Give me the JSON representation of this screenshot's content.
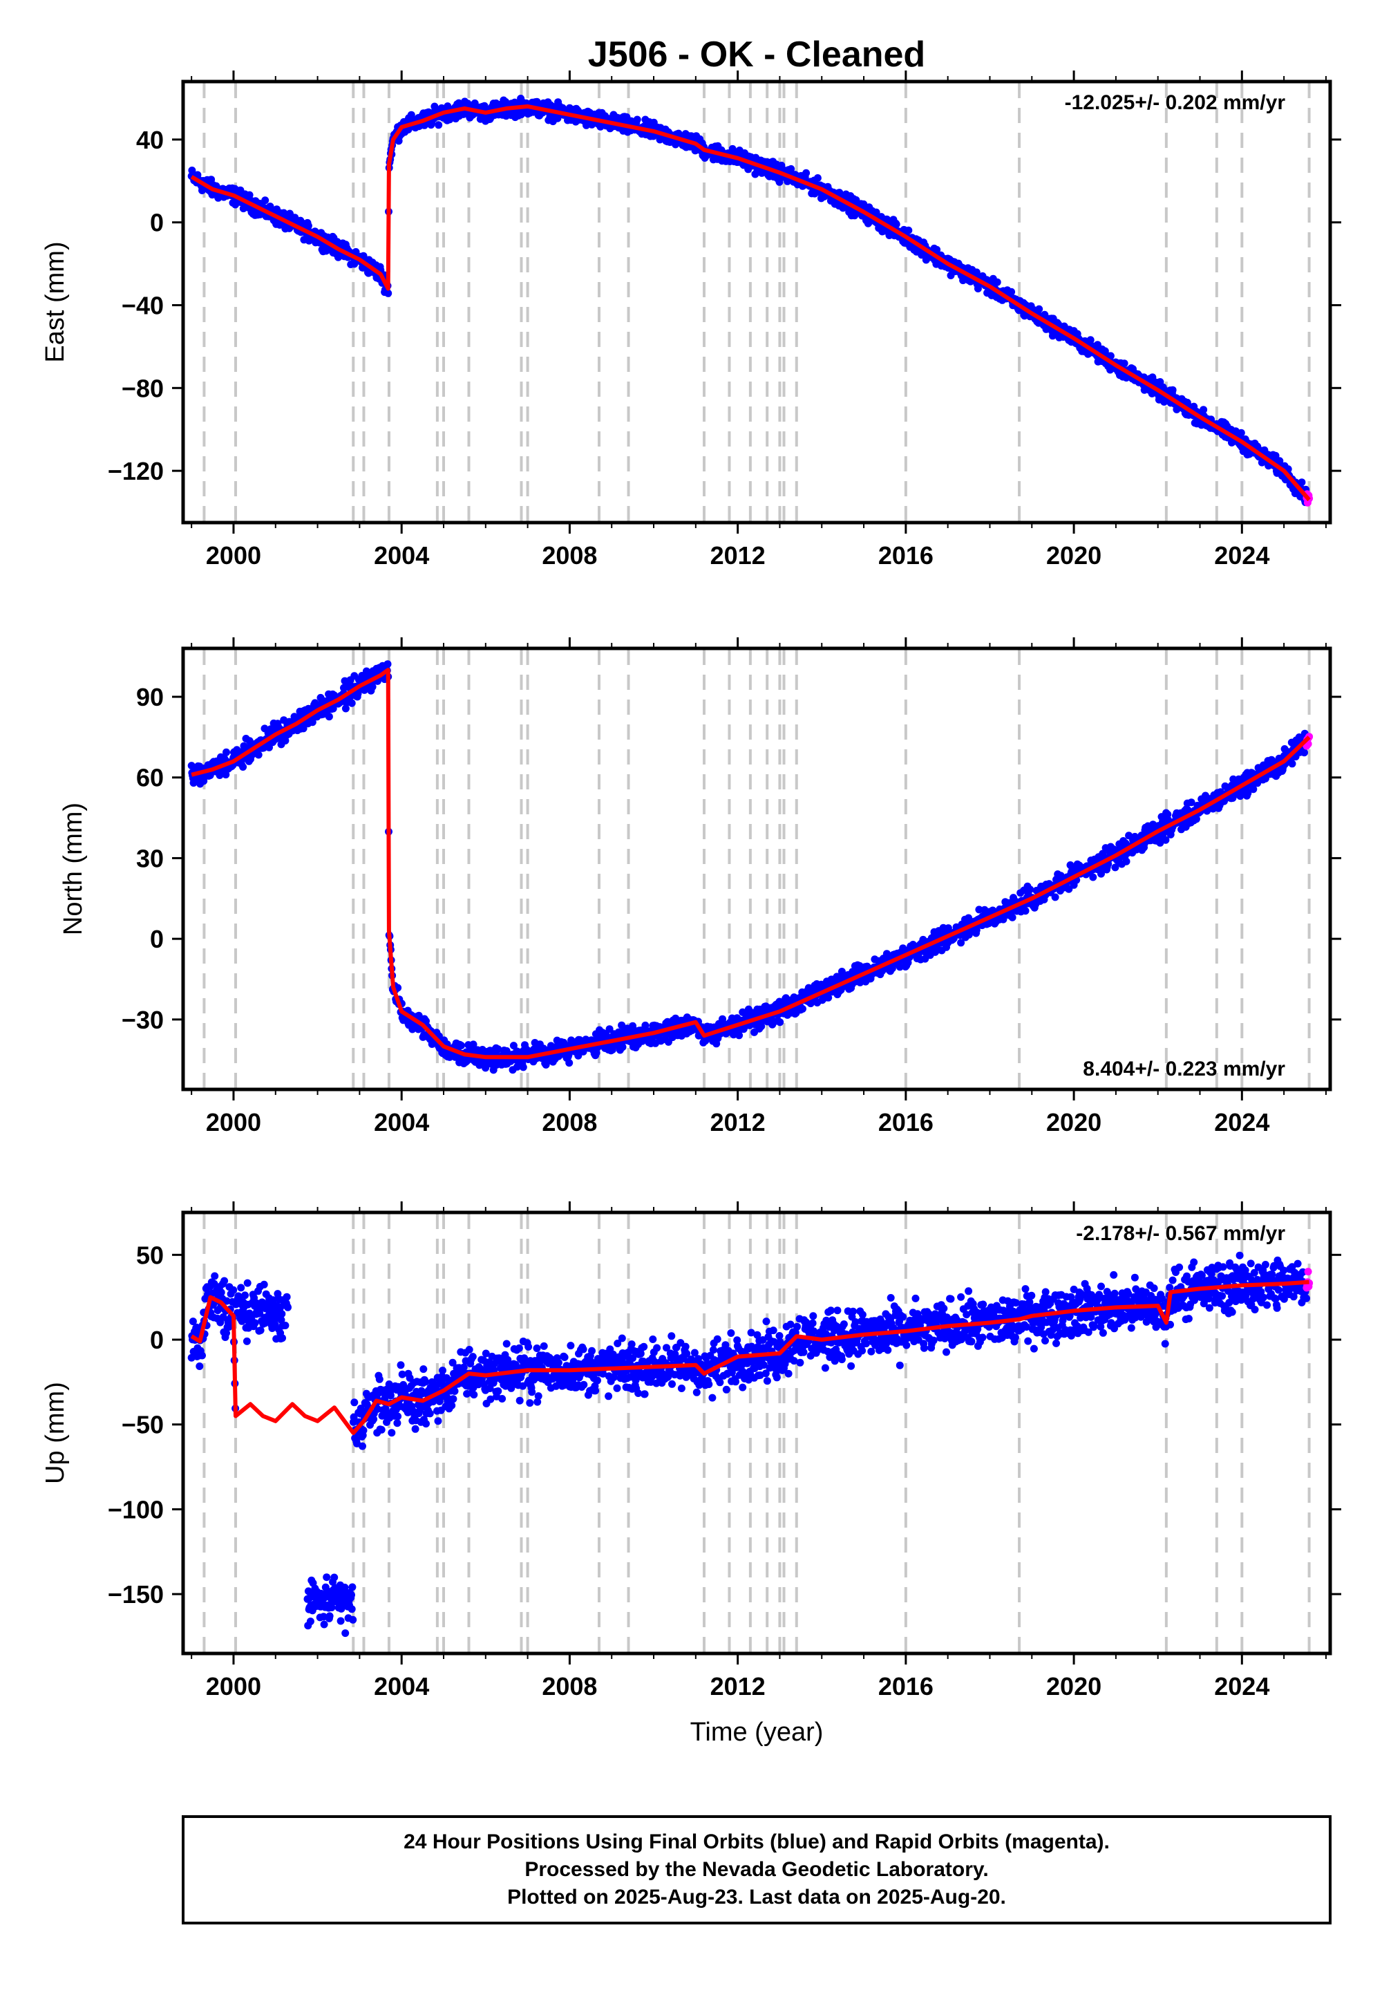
{
  "chart_data": [
    {
      "type": "scatter",
      "title": "J506  - OK - Cleaned",
      "ylabel": "East (mm)",
      "xlabel": "",
      "rate_label": "-12.025+/- 0.202 mm/yr",
      "rate_position": "top-right",
      "xlim": [
        1998.8,
        2026.1
      ],
      "ylim": [
        -145,
        68
      ],
      "xticks": [
        2000,
        2004,
        2008,
        2012,
        2016,
        2020,
        2024
      ],
      "yticks": [
        40,
        0,
        -40,
        -80,
        -120
      ],
      "ytick_labels": [
        "40",
        "0",
        "−40",
        "−80",
        "−120"
      ],
      "event_lines": [
        1999.3,
        2000.05,
        2002.85,
        2003.1,
        2003.7,
        2004.85,
        2005.0,
        2005.6,
        2006.85,
        2007.0,
        2008.7,
        2009.4,
        2011.2,
        2011.8,
        2012.3,
        2012.7,
        2013.0,
        2013.1,
        2013.4,
        2016.0,
        2018.7,
        2022.2,
        2023.4,
        2024.0,
        2025.6
      ],
      "model": [
        [
          1999.0,
          22
        ],
        [
          1999.5,
          16
        ],
        [
          2000.0,
          13
        ],
        [
          2000.5,
          8
        ],
        [
          2001.0,
          3
        ],
        [
          2001.5,
          -2
        ],
        [
          2002.0,
          -7
        ],
        [
          2002.5,
          -13
        ],
        [
          2003.0,
          -18
        ],
        [
          2003.5,
          -25
        ],
        [
          2003.68,
          -32
        ],
        [
          2003.7,
          28
        ],
        [
          2003.8,
          40
        ],
        [
          2004.0,
          46
        ],
        [
          2004.5,
          49
        ],
        [
          2005.0,
          53
        ],
        [
          2005.5,
          55
        ],
        [
          2006.0,
          53
        ],
        [
          2006.5,
          55
        ],
        [
          2007.0,
          56
        ],
        [
          2008.0,
          52
        ],
        [
          2009.0,
          48
        ],
        [
          2010.0,
          44
        ],
        [
          2011.0,
          38
        ],
        [
          2011.2,
          35
        ],
        [
          2012.0,
          31
        ],
        [
          2013.0,
          24
        ],
        [
          2014.0,
          16
        ],
        [
          2015.0,
          5
        ],
        [
          2016.0,
          -7
        ],
        [
          2017.0,
          -20
        ],
        [
          2018.0,
          -31
        ],
        [
          2019.0,
          -44
        ],
        [
          2020.0,
          -56
        ],
        [
          2021.0,
          -69
        ],
        [
          2022.0,
          -81
        ],
        [
          2023.0,
          -94
        ],
        [
          2024.0,
          -106
        ],
        [
          2025.0,
          -120
        ],
        [
          2025.6,
          -134
        ]
      ],
      "series": [
        {
          "name": "Final Orbits",
          "color": "#0000ff"
        },
        {
          "name": "Rapid Orbits",
          "color": "#ff00ff"
        },
        {
          "name": "Model",
          "color": "#ff0000"
        }
      ]
    },
    {
      "type": "scatter",
      "title": "",
      "ylabel": "North (mm)",
      "xlabel": "",
      "rate_label": "8.404+/- 0.223 mm/yr",
      "rate_position": "bottom-right",
      "xlim": [
        1998.8,
        2026.1
      ],
      "ylim": [
        -56,
        108
      ],
      "xticks": [
        2000,
        2004,
        2008,
        2012,
        2016,
        2020,
        2024
      ],
      "yticks": [
        90,
        60,
        30,
        0,
        -30
      ],
      "ytick_labels": [
        "90",
        "60",
        "30",
        "0",
        "−30"
      ],
      "event_lines": [
        1999.3,
        2000.05,
        2002.85,
        2003.1,
        2003.7,
        2004.85,
        2005.0,
        2005.6,
        2006.85,
        2007.0,
        2008.7,
        2009.4,
        2011.2,
        2011.8,
        2012.3,
        2012.7,
        2013.0,
        2013.1,
        2013.4,
        2016.0,
        2018.7,
        2022.2,
        2023.4,
        2024.0,
        2025.6
      ],
      "model": [
        [
          1999.0,
          61
        ],
        [
          1999.5,
          63
        ],
        [
          2000.0,
          66
        ],
        [
          2000.5,
          71
        ],
        [
          2001.0,
          76
        ],
        [
          2001.5,
          80
        ],
        [
          2002.0,
          85
        ],
        [
          2002.5,
          89
        ],
        [
          2003.0,
          94
        ],
        [
          2003.5,
          98
        ],
        [
          2003.68,
          100
        ],
        [
          2003.7,
          3
        ],
        [
          2003.8,
          -18
        ],
        [
          2004.0,
          -27
        ],
        [
          2004.5,
          -32
        ],
        [
          2005.0,
          -40
        ],
        [
          2005.5,
          -43
        ],
        [
          2006.0,
          -44
        ],
        [
          2006.5,
          -44
        ],
        [
          2007.0,
          -44
        ],
        [
          2008.0,
          -41
        ],
        [
          2009.0,
          -38
        ],
        [
          2010.0,
          -35
        ],
        [
          2011.0,
          -31
        ],
        [
          2011.2,
          -36
        ],
        [
          2012.0,
          -32
        ],
        [
          2013.0,
          -27
        ],
        [
          2014.0,
          -20
        ],
        [
          2015.0,
          -13
        ],
        [
          2016.0,
          -6
        ],
        [
          2017.0,
          1
        ],
        [
          2018.0,
          8
        ],
        [
          2019.0,
          15
        ],
        [
          2020.0,
          23
        ],
        [
          2021.0,
          31
        ],
        [
          2022.0,
          40
        ],
        [
          2023.0,
          48
        ],
        [
          2024.0,
          57
        ],
        [
          2025.0,
          66
        ],
        [
          2025.6,
          75
        ]
      ],
      "series": [
        {
          "name": "Final Orbits",
          "color": "#0000ff"
        },
        {
          "name": "Rapid Orbits",
          "color": "#ff00ff"
        },
        {
          "name": "Model",
          "color": "#ff0000"
        }
      ]
    },
    {
      "type": "scatter",
      "title": "",
      "ylabel": "Up (mm)",
      "xlabel": "Time (year)",
      "rate_label": "-2.178+/- 0.567 mm/yr",
      "rate_position": "top-right",
      "xlim": [
        1998.8,
        2026.1
      ],
      "ylim": [
        -185,
        75
      ],
      "xticks": [
        2000,
        2004,
        2008,
        2012,
        2016,
        2020,
        2024
      ],
      "yticks": [
        50,
        0,
        -50,
        -100,
        -150
      ],
      "ytick_labels": [
        "50",
        "0",
        "−50",
        "−100",
        "−150"
      ],
      "event_lines": [
        1999.3,
        2000.05,
        2002.85,
        2003.1,
        2003.7,
        2004.85,
        2005.0,
        2005.6,
        2006.85,
        2007.0,
        2008.7,
        2009.4,
        2011.2,
        2011.8,
        2012.3,
        2012.7,
        2013.0,
        2013.1,
        2013.4,
        2016.0,
        2018.7,
        2022.2,
        2023.4,
        2024.0,
        2025.6
      ],
      "model": [
        [
          1999.0,
          2
        ],
        [
          1999.2,
          -1
        ],
        [
          1999.45,
          25
        ],
        [
          1999.7,
          22
        ],
        [
          2000.0,
          14
        ],
        [
          2000.05,
          -45
        ],
        [
          2000.4,
          -38
        ],
        [
          2000.7,
          -45
        ],
        [
          2001.0,
          -48
        ],
        [
          2001.4,
          -38
        ],
        [
          2001.7,
          -45
        ],
        [
          2002.0,
          -48
        ],
        [
          2002.4,
          -40
        ],
        [
          2002.85,
          -55
        ],
        [
          2003.1,
          -48
        ],
        [
          2003.4,
          -36
        ],
        [
          2003.7,
          -38
        ],
        [
          2004.0,
          -34
        ],
        [
          2004.5,
          -36
        ],
        [
          2005.0,
          -30
        ],
        [
          2005.6,
          -20
        ],
        [
          2006.0,
          -21
        ],
        [
          2007.0,
          -18
        ],
        [
          2008.0,
          -18
        ],
        [
          2009.0,
          -17
        ],
        [
          2010.0,
          -16
        ],
        [
          2011.0,
          -15
        ],
        [
          2011.2,
          -20
        ],
        [
          2012.0,
          -10
        ],
        [
          2013.0,
          -8
        ],
        [
          2013.4,
          2
        ],
        [
          2014.0,
          0
        ],
        [
          2015.0,
          3
        ],
        [
          2016.0,
          5
        ],
        [
          2017.0,
          8
        ],
        [
          2018.0,
          10
        ],
        [
          2018.7,
          12
        ],
        [
          2019.0,
          14
        ],
        [
          2020.0,
          17
        ],
        [
          2021.0,
          19
        ],
        [
          2022.0,
          20
        ],
        [
          2022.2,
          10
        ],
        [
          2022.3,
          28
        ],
        [
          2023.0,
          30
        ],
        [
          2024.0,
          32
        ],
        [
          2025.0,
          33
        ],
        [
          2025.6,
          34
        ]
      ],
      "series": [
        {
          "name": "Final Orbits",
          "color": "#0000ff"
        },
        {
          "name": "Rapid Orbits",
          "color": "#ff00ff"
        },
        {
          "name": "Model",
          "color": "#ff0000"
        }
      ]
    }
  ],
  "footer": {
    "line1": "24 Hour Positions Using Final Orbits (blue) and Rapid Orbits (magenta).",
    "line2": "Processed by the Nevada Geodetic Laboratory.",
    "line3": "Plotted on 2025-Aug-23. Last data on 2025-Aug-20."
  }
}
